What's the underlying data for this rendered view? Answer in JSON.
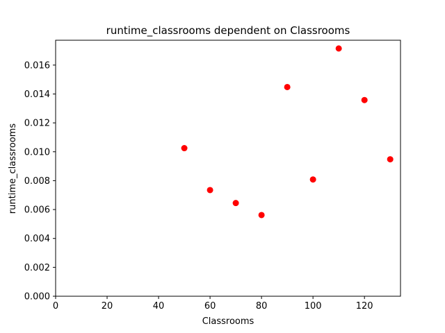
{
  "chart_data": {
    "type": "scatter",
    "title": "runtime_classrooms dependent on Classrooms",
    "xlabel": "Classrooms",
    "ylabel": "runtime_classrooms",
    "xlim": [
      0,
      134
    ],
    "ylim": [
      0,
      0.01772
    ],
    "x_ticks": [
      "0",
      "20",
      "40",
      "60",
      "80",
      "100",
      "120"
    ],
    "x_tick_values": [
      0,
      20,
      40,
      60,
      80,
      100,
      120
    ],
    "y_ticks": [
      "0.000",
      "0.002",
      "0.004",
      "0.006",
      "0.008",
      "0.010",
      "0.012",
      "0.014",
      "0.016"
    ],
    "y_tick_values": [
      0,
      0.002,
      0.004,
      0.006,
      0.008,
      0.01,
      0.012,
      0.014,
      0.016
    ],
    "grid": false,
    "marker_color": "#ff0000",
    "points": [
      {
        "x": 50,
        "y": 0.01025
      },
      {
        "x": 60,
        "y": 0.00735
      },
      {
        "x": 70,
        "y": 0.00645
      },
      {
        "x": 80,
        "y": 0.00562
      },
      {
        "x": 90,
        "y": 0.01448
      },
      {
        "x": 100,
        "y": 0.00808
      },
      {
        "x": 110,
        "y": 0.01715
      },
      {
        "x": 120,
        "y": 0.01358
      },
      {
        "x": 130,
        "y": 0.00948
      }
    ]
  }
}
